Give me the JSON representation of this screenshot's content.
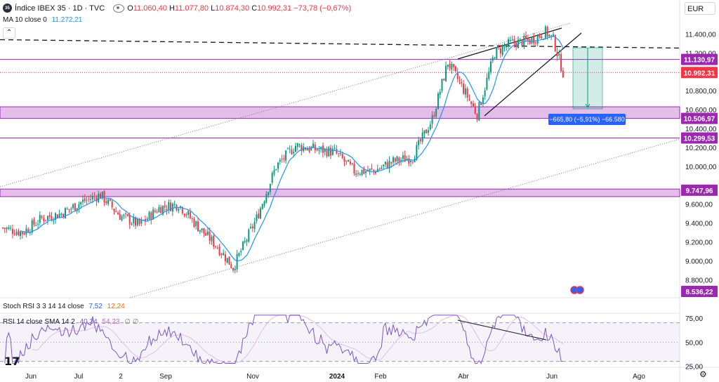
{
  "header": {
    "badge": "35",
    "title": "Índice IBEX 35 · 1D · TVC",
    "open_label": "O",
    "open": "11.060,40",
    "high_label": "H",
    "high": "11.077,80",
    "low_label": "L",
    "low": "10.874,30",
    "close_label": "C",
    "close": "10.992,31",
    "change": "−73,78 (−0,67%)",
    "ma_name": "MA 10 close 0",
    "ma_value": "11.272,21",
    "currency": "EUR",
    "collapse_icon": "chevron-up-icon"
  },
  "colors": {
    "up": "#089981",
    "down": "#f23645",
    "ma": "#2196f3",
    "zone": "#ce93d8",
    "zone_line": "#9c27b0",
    "rsi": "#7e57c2",
    "rsi_sma": "#e1bee7",
    "stoch_k": "#2962ff",
    "stoch_d": "#ff6d00",
    "measure": "#089981"
  },
  "chart_data": {
    "type": "candlestick",
    "symbol": "Índice IBEX 35",
    "interval": "1D",
    "currency": "EUR",
    "y_ticks": [
      "11.400,00",
      "11.200,00",
      "10.800,00",
      "10.600,00",
      "10.400,00",
      "10.200,00",
      "10.000,00",
      "9.600,00",
      "9.400,00",
      "9.200,00",
      "9.000,00",
      "8.800,00"
    ],
    "y_tick_values": [
      11400,
      11200,
      10800,
      10600,
      10400,
      10200,
      10000,
      9600,
      9400,
      9200,
      9000,
      8800
    ],
    "ylim": [
      8640,
      11700
    ],
    "x_ticks": [
      "Jun",
      "Jul",
      "2",
      "Sep",
      "Nov",
      "2024",
      "Feb",
      "Abr",
      "Jun",
      "Ago"
    ],
    "price_labels": [
      {
        "text": "11.130,97",
        "value": 11130.97,
        "kind": "level"
      },
      {
        "text": "10.992,31",
        "value": 10992.31,
        "kind": "last"
      },
      {
        "text": "10.506,97",
        "value": 10506.97,
        "kind": "level"
      },
      {
        "text": "10.299,53",
        "value": 10299.53,
        "kind": "level"
      },
      {
        "text": "9.747,96",
        "value": 9747.96,
        "kind": "level"
      },
      {
        "text": "8.536,22",
        "value": 8536.22,
        "kind": "level"
      }
    ],
    "zones": [
      [
        10506.97,
        10630
      ],
      [
        9680,
        9760
      ]
    ],
    "resistance_dashed": 11340,
    "measure_label": "−665,80 (−5,91%) −66.580",
    "anchors": [
      {
        "i": 0,
        "v": 9350
      },
      {
        "i": 10,
        "v": 9300
      },
      {
        "i": 20,
        "v": 9450
      },
      {
        "i": 30,
        "v": 9500
      },
      {
        "i": 40,
        "v": 9620
      },
      {
        "i": 50,
        "v": 9700
      },
      {
        "i": 60,
        "v": 9480
      },
      {
        "i": 70,
        "v": 9380
      },
      {
        "i": 80,
        "v": 9560
      },
      {
        "i": 90,
        "v": 9600
      },
      {
        "i": 100,
        "v": 9360
      },
      {
        "i": 110,
        "v": 9150
      },
      {
        "i": 118,
        "v": 8930
      },
      {
        "i": 130,
        "v": 9450
      },
      {
        "i": 140,
        "v": 10000
      },
      {
        "i": 150,
        "v": 10220
      },
      {
        "i": 160,
        "v": 10180
      },
      {
        "i": 170,
        "v": 10150
      },
      {
        "i": 180,
        "v": 9950
      },
      {
        "i": 190,
        "v": 9950
      },
      {
        "i": 200,
        "v": 10050
      },
      {
        "i": 210,
        "v": 10100
      },
      {
        "i": 220,
        "v": 10500
      },
      {
        "i": 228,
        "v": 11100
      },
      {
        "i": 235,
        "v": 10850
      },
      {
        "i": 243,
        "v": 10550
      },
      {
        "i": 252,
        "v": 11200
      },
      {
        "i": 260,
        "v": 11300
      },
      {
        "i": 270,
        "v": 11330
      },
      {
        "i": 278,
        "v": 11420
      },
      {
        "i": 282,
        "v": 11340
      },
      {
        "i": 287,
        "v": 10992
      }
    ],
    "indicators": {
      "stoch_rsi": {
        "name": "Stoch RSI 3 3 14 14 close",
        "k": "7,52",
        "d": "12,24"
      },
      "rsi": {
        "name": "RSI 14 close SMA 14 2",
        "value": "40,34",
        "sma": "54,23",
        "extra": "∅ ∅",
        "y_ticks": [
          "75,00",
          "50,00",
          "25,00"
        ],
        "y_tick_values": [
          75,
          50,
          25
        ],
        "bands": [
          70,
          30
        ],
        "ylim": [
          24,
          80
        ]
      }
    }
  },
  "footer": {
    "logo": "17",
    "gear_icon": "gear-icon"
  }
}
